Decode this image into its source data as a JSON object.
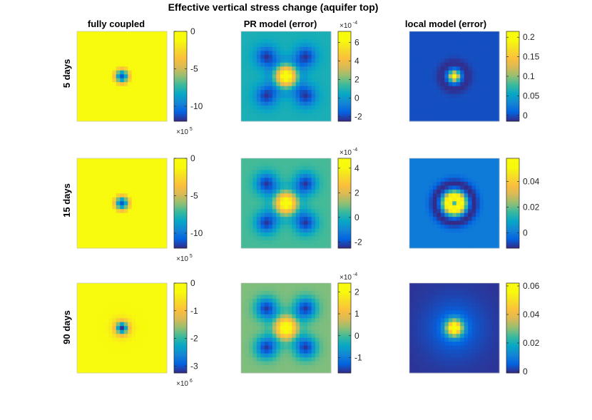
{
  "chart_data": {
    "type": "heatmap",
    "title": "Effective vertical stress change (aquifer top)",
    "columns": [
      "fully coupled",
      "PR model (error)",
      "local model (error)"
    ],
    "rows": [
      "5 days",
      "15 days",
      "90 days"
    ],
    "grid_size": 23,
    "colormap": "parula",
    "panels": [
      {
        "name": "fully-coupled-5-days",
        "row": 0,
        "col": 0,
        "pattern": "peak",
        "clim": [
          -1200000,
          0
        ],
        "colorbar": {
          "ticks": [
            0,
            -5,
            -10
          ],
          "tick_labels": [
            "0",
            "-5",
            "-10"
          ],
          "scale": 100000,
          "multiplier": "×10",
          "exponent": "5",
          "multiplier_position": "below"
        }
      },
      {
        "name": "pr-model-5-days",
        "row": 0,
        "col": 1,
        "pattern": "pr",
        "clim": [
          -0.00025,
          0.00072
        ],
        "colorbar": {
          "ticks": [
            6,
            4,
            2,
            0,
            -2
          ],
          "tick_labels": [
            "6",
            "4",
            "2",
            "0",
            "-2"
          ],
          "scale": 0.0001,
          "multiplier": "×10",
          "exponent": "-4",
          "multiplier_position": "above"
        }
      },
      {
        "name": "local-model-5-days",
        "row": 0,
        "col": 2,
        "pattern": "local_ring",
        "clim": [
          -0.015,
          0.215
        ],
        "colorbar": {
          "ticks": [
            0.2,
            0.15,
            0.1,
            0.05,
            0
          ],
          "tick_labels": [
            "0.2",
            "0.15",
            "0.1",
            "0.05",
            "0"
          ],
          "scale": 1
        }
      },
      {
        "name": "fully-coupled-15-days",
        "row": 1,
        "col": 0,
        "pattern": "peak",
        "clim": [
          -1200000,
          0
        ],
        "colorbar": {
          "ticks": [
            0,
            -5,
            -10
          ],
          "tick_labels": [
            "0",
            "-5",
            "-10"
          ],
          "scale": 100000,
          "multiplier": "×10",
          "exponent": "5",
          "multiplier_position": "below"
        }
      },
      {
        "name": "pr-model-15-days",
        "row": 1,
        "col": 1,
        "pattern": "pr",
        "clim": [
          -0.00025,
          0.00048
        ],
        "colorbar": {
          "ticks": [
            4,
            2,
            0,
            -2
          ],
          "tick_labels": [
            "4",
            "2",
            "0",
            "-2"
          ],
          "scale": 0.0001,
          "multiplier": "×10",
          "exponent": "-4",
          "multiplier_position": "above"
        }
      },
      {
        "name": "local-model-15-days",
        "row": 1,
        "col": 2,
        "pattern": "local_donut",
        "clim": [
          -0.012,
          0.058
        ],
        "colorbar": {
          "ticks": [
            0.04,
            0.02,
            0
          ],
          "tick_labels": [
            "0.04",
            "0.02",
            "0"
          ],
          "scale": 1
        }
      },
      {
        "name": "fully-coupled-90-days",
        "row": 2,
        "col": 0,
        "pattern": "peak_wide",
        "clim": [
          -3250000,
          0
        ],
        "colorbar": {
          "ticks": [
            0,
            -1,
            -2,
            -3
          ],
          "tick_labels": [
            "0",
            "-1",
            "-2",
            "-3"
          ],
          "scale": 1000000,
          "multiplier": "×10",
          "exponent": "6",
          "multiplier_position": "below"
        }
      },
      {
        "name": "pr-model-90-days",
        "row": 2,
        "col": 1,
        "pattern": "pr",
        "clim": [
          -0.00017,
          0.00024
        ],
        "colorbar": {
          "ticks": [
            2,
            1,
            0,
            -1
          ],
          "tick_labels": [
            "2",
            "1",
            "0",
            "-1"
          ],
          "scale": 0.0001,
          "multiplier": "×10",
          "exponent": "-4",
          "multiplier_position": "above"
        }
      },
      {
        "name": "local-model-90-days",
        "row": 2,
        "col": 2,
        "pattern": "local_peak",
        "clim": [
          -0.001,
          0.062
        ],
        "colorbar": {
          "ticks": [
            0.06,
            0.04,
            0.02,
            0
          ],
          "tick_labels": [
            "0.06",
            "0.04",
            "0.02",
            "0"
          ],
          "scale": 1
        }
      }
    ]
  }
}
